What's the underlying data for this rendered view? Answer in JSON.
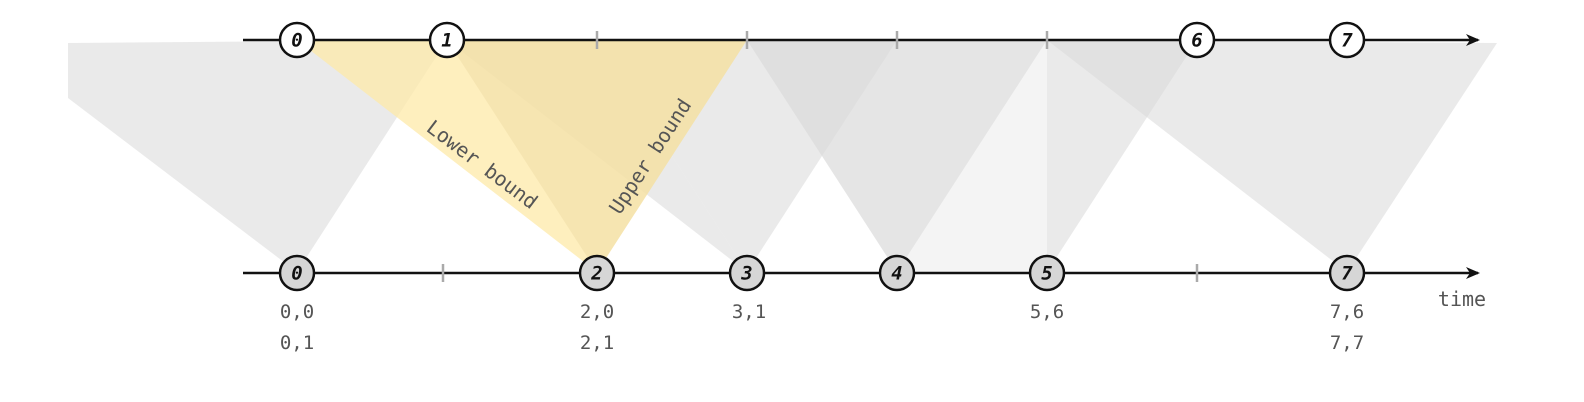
{
  "axis_label": "time",
  "top_nodes": [
    "0",
    "1",
    "6",
    "7"
  ],
  "bottom_nodes": [
    "0",
    "2",
    "3",
    "4",
    "5",
    "7"
  ],
  "pair_labels": [
    [
      "0,0",
      "0,1"
    ],
    [
      "2,0",
      "2,1"
    ],
    [
      "3,1"
    ],
    [
      "5,6"
    ],
    [
      "7,6",
      "7,7"
    ]
  ],
  "bounds": {
    "lower": "Lower bound",
    "upper": "Upper bound"
  },
  "colors": {
    "line": "#111111",
    "tick": "#aaaaaa",
    "grey_region": "#d9d9d9",
    "highlight_region": "#fde9a8",
    "top_node_fill": "#ffffff",
    "bottom_node_fill": "#d6d6d6"
  }
}
